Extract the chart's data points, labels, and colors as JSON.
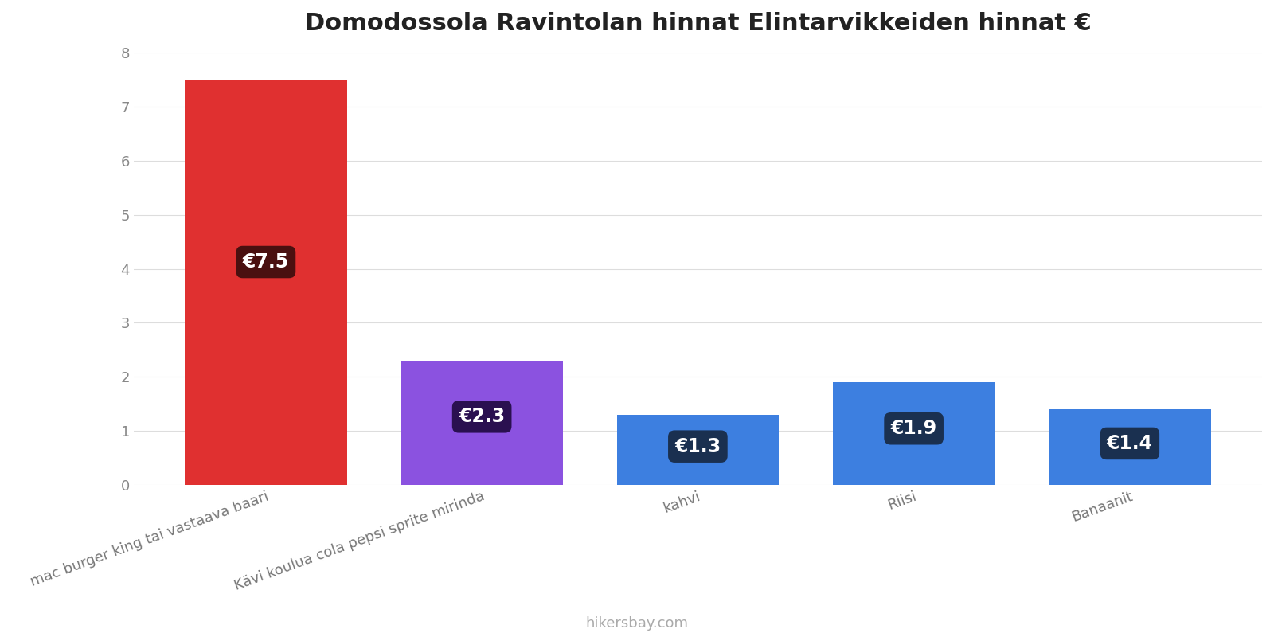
{
  "title": "Domodossola Ravintolan hinnat Elintarvikkeiden hinnat €",
  "categories": [
    "mac burger king tai vastaava baari",
    "Kävi koulua cola pepsi sprite mirinda",
    "kahvi",
    "Riisi",
    "Banaanit"
  ],
  "values": [
    7.5,
    2.3,
    1.3,
    1.9,
    1.4
  ],
  "bar_colors": [
    "#e03030",
    "#8b52e0",
    "#3d7fe0",
    "#3d7fe0",
    "#3d7fe0"
  ],
  "label_bg_colors": [
    "#4a1010",
    "#2a1050",
    "#1a3050",
    "#1a3050",
    "#1a3050"
  ],
  "labels": [
    "€7.5",
    "€2.3",
    "€1.3",
    "€1.9",
    "€1.4"
  ],
  "ylim": [
    0,
    8
  ],
  "yticks": [
    0,
    1,
    2,
    3,
    4,
    5,
    6,
    7,
    8
  ],
  "background_color": "#ffffff",
  "grid_color": "#dddddd",
  "footer_text": "hikersbay.com",
  "title_fontsize": 22,
  "label_fontsize": 17,
  "tick_fontsize": 13,
  "footer_fontsize": 13,
  "bar_width": 0.75
}
